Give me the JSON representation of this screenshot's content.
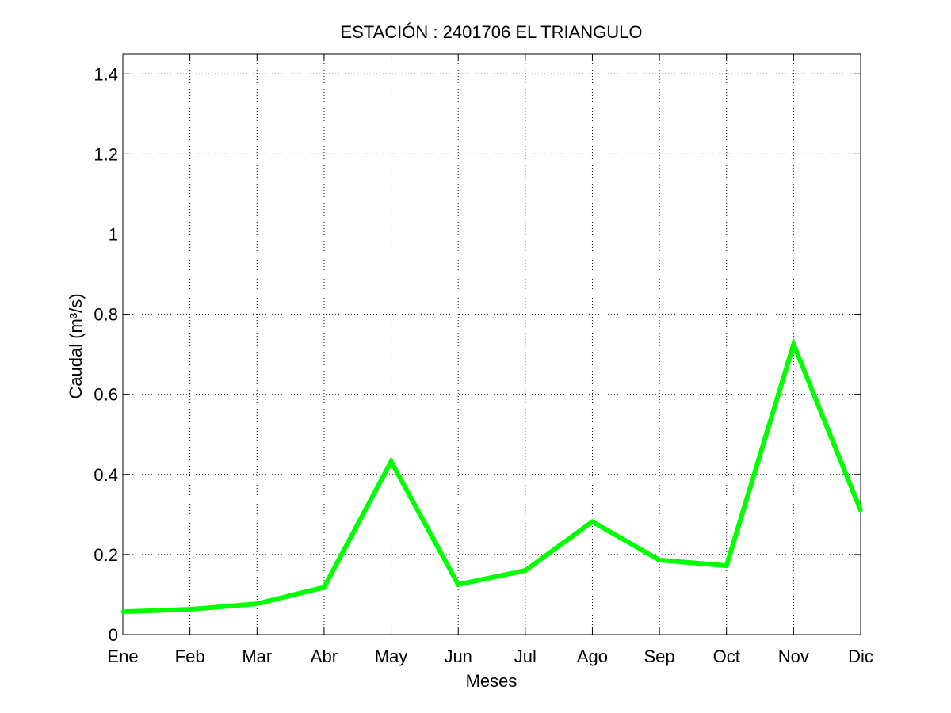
{
  "chart_data": {
    "type": "line",
    "title": "ESTACIÓN :  2401706  EL TRIANGULO",
    "xlabel": "Meses",
    "ylabel": "Caudal (m³/s)",
    "categories": [
      "Ene",
      "Feb",
      "Mar",
      "Abr",
      "May",
      "Jun",
      "Jul",
      "Ago",
      "Sep",
      "Oct",
      "Nov",
      "Dic"
    ],
    "yticks": [
      "0",
      "0.2",
      "0.4",
      "0.6",
      "0.8",
      "1",
      "1.2",
      "1.4"
    ],
    "ylim": [
      0,
      1.45
    ],
    "grid": true,
    "series": [
      {
        "values": [
          0.057,
          0.063,
          0.077,
          0.118,
          0.432,
          0.125,
          0.16,
          0.282,
          0.186,
          0.172,
          0.725,
          0.31
        ],
        "color": "#00ff00"
      }
    ]
  }
}
